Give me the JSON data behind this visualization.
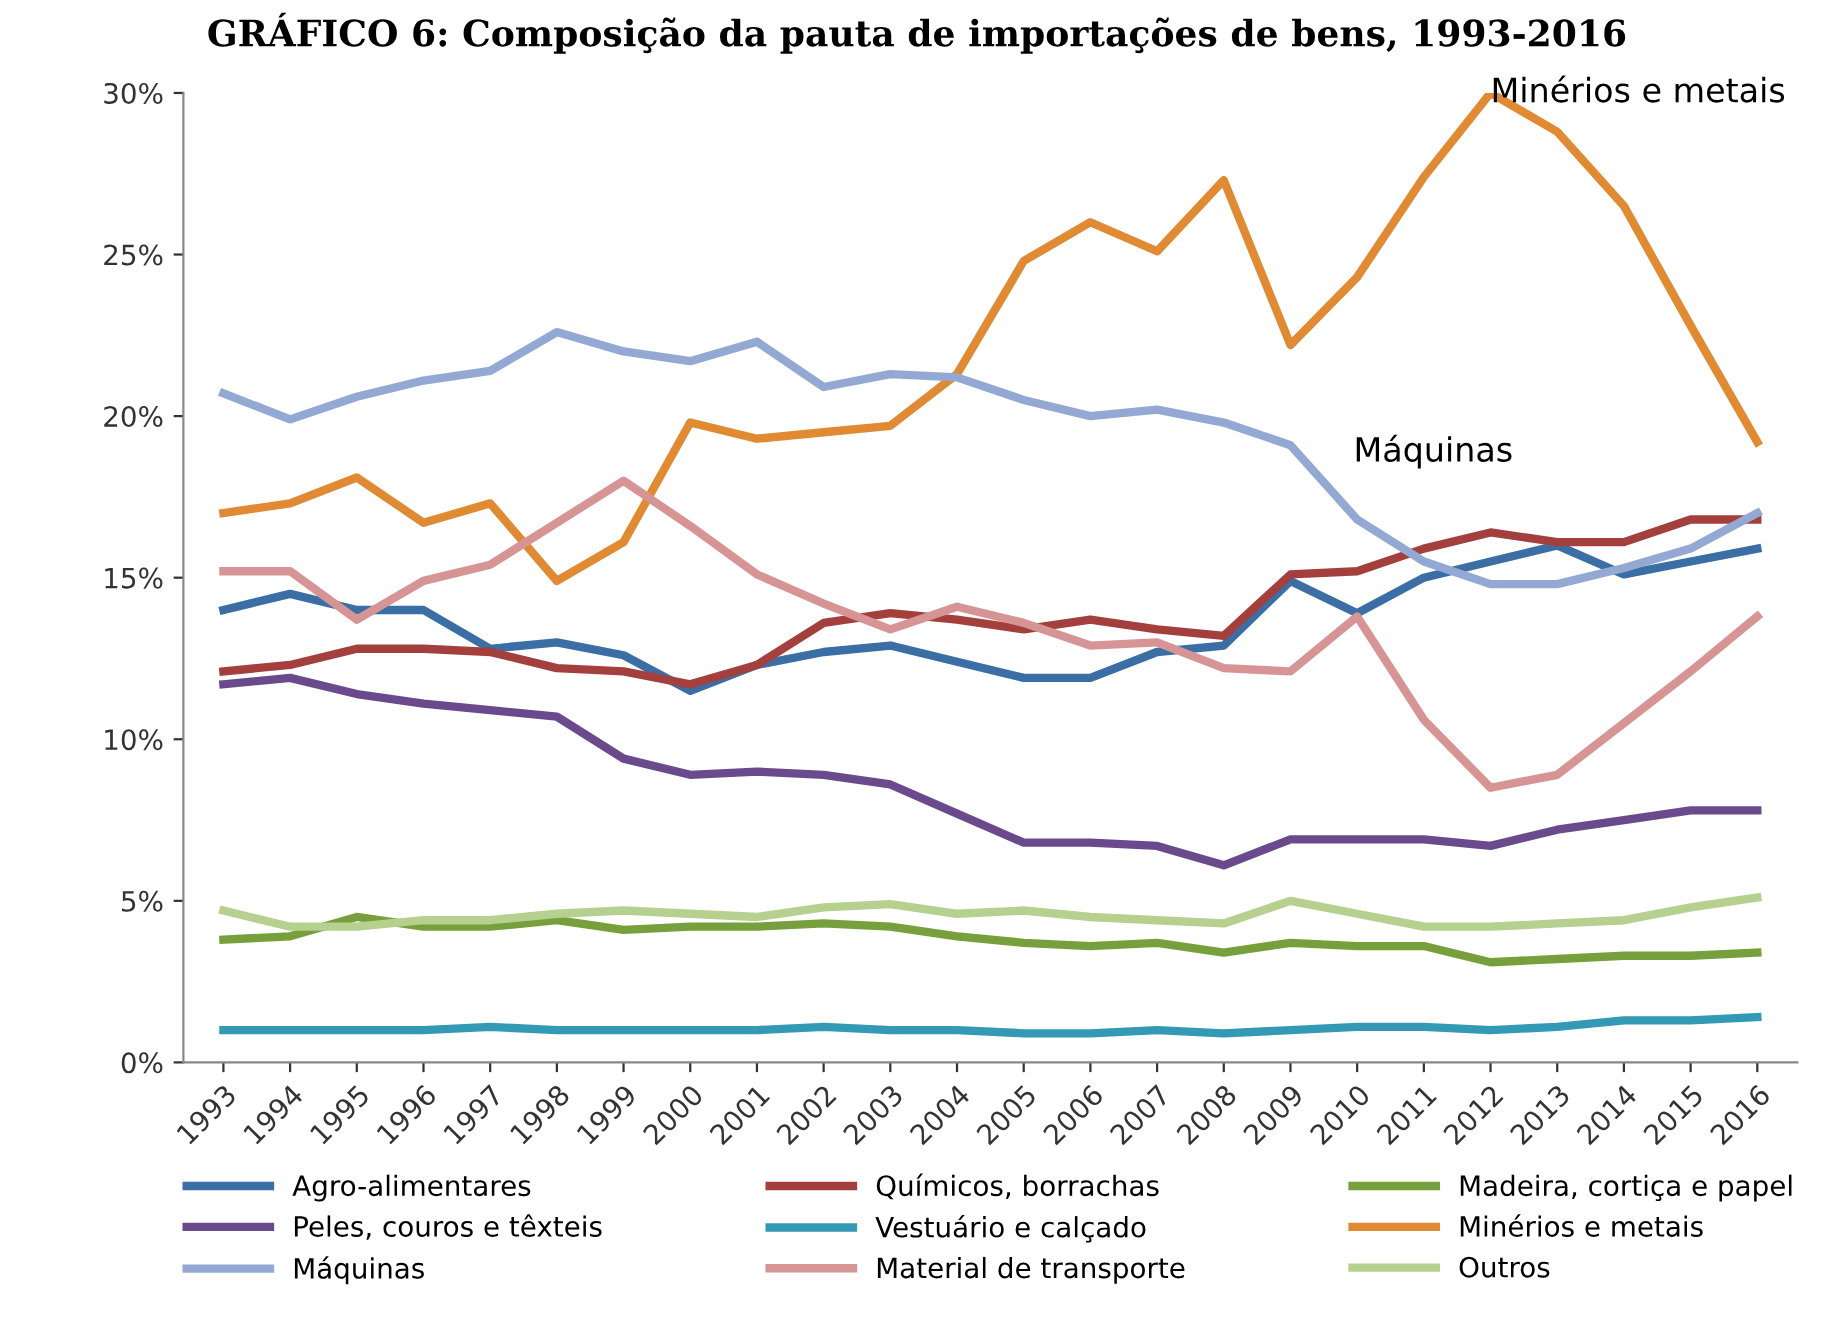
{
  "chart_data": {
    "type": "line",
    "title": "GRÁFICO 6: Composição da pauta de importações de bens, 1993-2016",
    "categories": [
      "1993",
      "1994",
      "1995",
      "1996",
      "1997",
      "1998",
      "1999",
      "2000",
      "2001",
      "2002",
      "2003",
      "2004",
      "2005",
      "2006",
      "2007",
      "2008",
      "2009",
      "2010",
      "2011",
      "2012",
      "2013",
      "2014",
      "2015",
      "2016"
    ],
    "series": [
      {
        "name": "Agro-alimentares",
        "color": "#3a6ea5",
        "values": [
          14.0,
          14.5,
          14.0,
          14.0,
          12.8,
          13.0,
          12.6,
          11.5,
          12.3,
          12.7,
          12.9,
          12.4,
          11.9,
          11.9,
          12.7,
          12.9,
          14.9,
          13.9,
          15.0,
          15.5,
          16.0,
          15.1,
          15.5,
          15.9
        ]
      },
      {
        "name": "Químicos, borrachas",
        "color": "#a3403d",
        "values": [
          12.1,
          12.3,
          12.8,
          12.8,
          12.7,
          12.2,
          12.1,
          11.7,
          12.3,
          13.6,
          13.9,
          13.7,
          13.4,
          13.7,
          13.4,
          13.2,
          15.1,
          15.2,
          15.9,
          16.4,
          16.1,
          16.1,
          16.8,
          16.8
        ]
      },
      {
        "name": "Madeira, cortiça e papel",
        "color": "#77a03c",
        "values": [
          3.8,
          3.9,
          4.5,
          4.2,
          4.2,
          4.4,
          4.1,
          4.2,
          4.2,
          4.3,
          4.2,
          3.9,
          3.7,
          3.6,
          3.7,
          3.4,
          3.7,
          3.6,
          3.6,
          3.1,
          3.2,
          3.3,
          3.3,
          3.4
        ]
      },
      {
        "name": "Peles, couros e têxteis",
        "color": "#6a4a8c",
        "values": [
          11.7,
          11.9,
          11.4,
          11.1,
          10.9,
          10.7,
          9.4,
          8.9,
          9.0,
          8.9,
          8.6,
          7.7,
          6.8,
          6.8,
          6.7,
          6.1,
          6.9,
          6.9,
          6.9,
          6.7,
          7.2,
          7.5,
          7.8,
          7.8
        ]
      },
      {
        "name": "Vestuário e calçado",
        "color": "#3399b5",
        "values": [
          1.0,
          1.0,
          1.0,
          1.0,
          1.1,
          1.0,
          1.0,
          1.0,
          1.0,
          1.1,
          1.0,
          1.0,
          0.9,
          0.9,
          1.0,
          0.9,
          1.0,
          1.1,
          1.1,
          1.0,
          1.1,
          1.3,
          1.3,
          1.4
        ]
      },
      {
        "name": "Minérios e metais",
        "color": "#e08a33",
        "values": [
          17.0,
          17.3,
          18.1,
          16.7,
          17.3,
          14.9,
          16.1,
          19.8,
          19.3,
          19.5,
          19.7,
          21.3,
          24.8,
          26.0,
          25.1,
          27.3,
          22.2,
          24.3,
          27.4,
          30.0,
          28.8,
          26.5,
          22.8,
          19.2
        ]
      },
      {
        "name": "Máquinas",
        "color": "#93a9d4",
        "values": [
          20.7,
          19.9,
          20.6,
          21.1,
          21.4,
          22.6,
          22.0,
          21.7,
          22.3,
          20.9,
          21.3,
          21.2,
          20.5,
          20.0,
          20.2,
          19.8,
          19.1,
          16.8,
          15.5,
          14.8,
          14.8,
          15.3,
          15.9,
          17.0
        ]
      },
      {
        "name": "Material de transporte",
        "color": "#d69594",
        "values": [
          15.2,
          15.2,
          13.7,
          14.9,
          15.4,
          16.7,
          18.0,
          16.6,
          15.1,
          14.2,
          13.4,
          14.1,
          13.6,
          12.9,
          13.0,
          12.2,
          12.1,
          13.8,
          10.6,
          8.5,
          8.9,
          10.5,
          12.1,
          13.8
        ]
      },
      {
        "name": "Outros",
        "color": "#b5d08f",
        "values": [
          4.7,
          4.2,
          4.2,
          4.4,
          4.4,
          4.6,
          4.7,
          4.6,
          4.5,
          4.8,
          4.9,
          4.6,
          4.7,
          4.5,
          4.4,
          4.3,
          5.0,
          4.6,
          4.2,
          4.2,
          4.3,
          4.4,
          4.8,
          5.1
        ]
      }
    ],
    "annotations": [
      {
        "text": "Minérios e metais",
        "x": "2012",
        "y": 30
      },
      "Máquinas"
    ],
    "ylim": [
      0,
      30
    ],
    "yticks": [
      {
        "value": 0,
        "label": "0%"
      },
      {
        "value": 5,
        "label": "5%"
      },
      {
        "value": 10,
        "label": "10%"
      },
      {
        "value": 15,
        "label": "15%"
      },
      {
        "value": 20,
        "label": "20%"
      },
      {
        "value": 25,
        "label": "25%"
      },
      {
        "value": 30,
        "label": "30%"
      }
    ],
    "legend": "bottom",
    "line_style": "solid"
  }
}
